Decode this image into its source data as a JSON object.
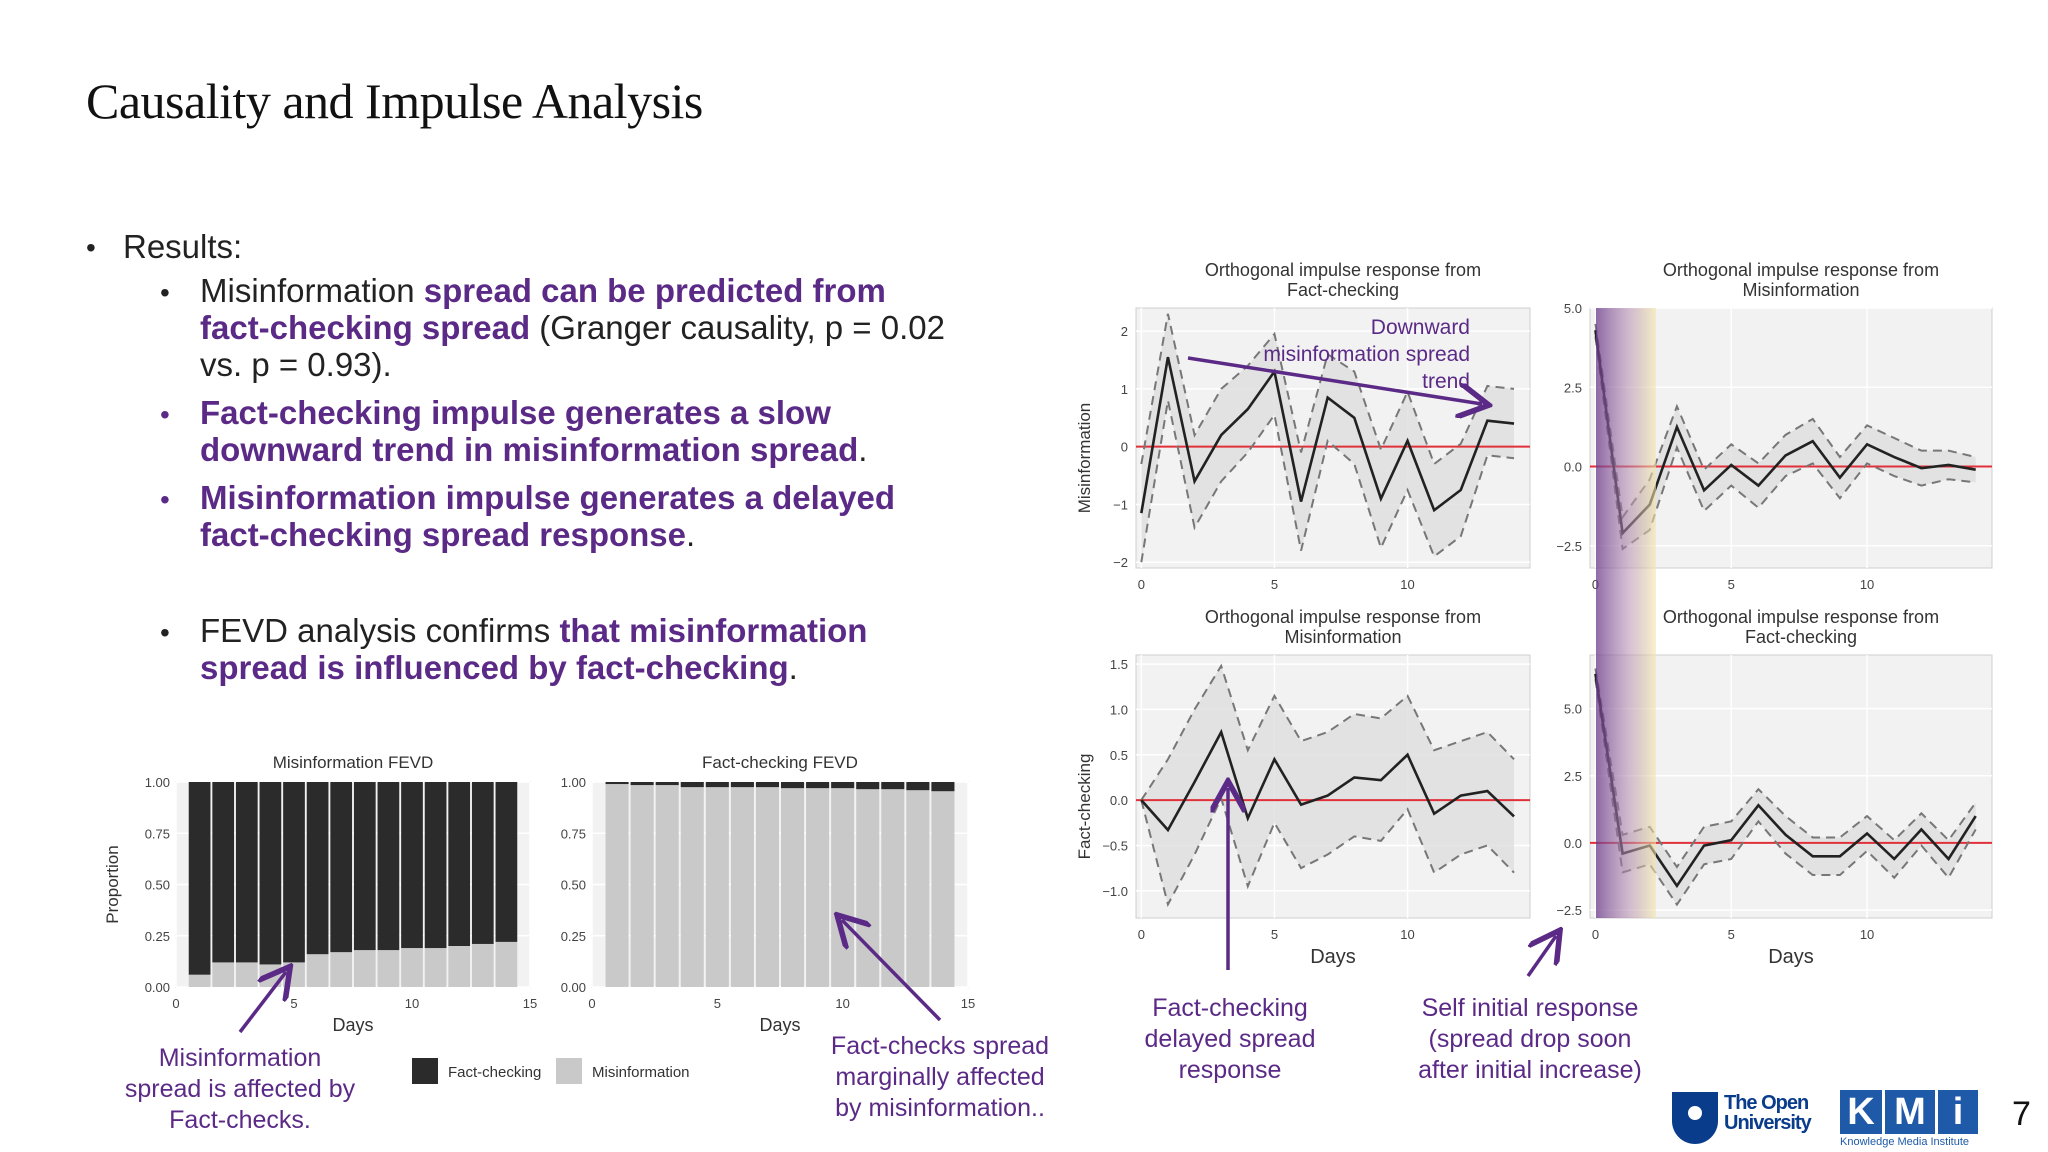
{
  "slide": {
    "title": "Causality and Impulse Analysis",
    "page_number": "7"
  },
  "bullets": {
    "results_label": "Results:",
    "b1": {
      "t1": "Misinformation ",
      "h1": "spread can be predicted from",
      "h2": "fact-checking spread",
      "t2": " (Granger causality, p = 0.02",
      "t3": "vs. p = 0.93)."
    },
    "b2": {
      "h1": "Fact-checking impulse generates a slow",
      "h2": "downward trend in misinformation spread",
      "t": "."
    },
    "b3": {
      "h1": "Misinformation impulse generates a delayed",
      "h2": "fact-checking spread response",
      "t": "."
    },
    "b4": {
      "t1": "FEVD analysis confirms ",
      "h1": "that misinformation",
      "h2": "spread is influenced by fact-checking",
      "t": "."
    }
  },
  "annotations": {
    "misinfo_affected": [
      "Misinformation",
      "spread is affected by",
      "Fact-checks."
    ],
    "factchecks_marginal": [
      "Fact-checks spread",
      "marginally affected",
      "by misinformation.."
    ],
    "delayed_response": [
      "Fact-checking",
      "delayed spread",
      "response"
    ],
    "self_initial": [
      "Self initial response",
      "(spread drop soon",
      "after initial increase)"
    ],
    "downward_trend": [
      "Downward",
      "misinformation spread",
      "trend"
    ]
  },
  "logos": {
    "ou_line1": "The Open",
    "ou_line2": "University",
    "kmi_letters": [
      "K",
      "M",
      "i"
    ],
    "kmi_sub": "Knowledge Media Institute"
  },
  "colors": {
    "purple": "#5b2a86",
    "red": "#e0303a",
    "dark": "#2b2b2b",
    "light": "#c9c9c9",
    "band": "#f2f2f2"
  },
  "chart_data": [
    {
      "type": "bar",
      "title": "Misinformation FEVD",
      "xlabel": "Days",
      "ylabel": "Proportion",
      "xlim": [
        0,
        15
      ],
      "ylim": [
        0,
        1
      ],
      "xticks": [
        "0",
        "5",
        "10",
        "15"
      ],
      "yticks": [
        "0.00",
        "0.25",
        "0.50",
        "0.75",
        "1.00"
      ],
      "x": [
        1,
        2,
        3,
        4,
        5,
        6,
        7,
        8,
        9,
        10,
        11,
        12,
        13,
        14
      ],
      "series": [
        {
          "name": "Misinformation",
          "values": [
            0.06,
            0.12,
            0.12,
            0.11,
            0.12,
            0.16,
            0.17,
            0.18,
            0.18,
            0.19,
            0.19,
            0.2,
            0.21,
            0.22
          ]
        },
        {
          "name": "Fact-checking",
          "values": [
            0.94,
            0.88,
            0.88,
            0.89,
            0.88,
            0.84,
            0.83,
            0.82,
            0.82,
            0.81,
            0.81,
            0.8,
            0.79,
            0.78
          ]
        }
      ],
      "legend": {
        "placement": "bottom",
        "entries": [
          "Fact-checking",
          "Misinformation"
        ]
      }
    },
    {
      "type": "bar",
      "title": "Fact-checking FEVD",
      "xlabel": "Days",
      "xlim": [
        0,
        15
      ],
      "ylim": [
        0,
        1
      ],
      "xticks": [
        "0",
        "5",
        "10",
        "15"
      ],
      "yticks": [
        "0.00",
        "0.25",
        "0.50",
        "0.75",
        "1.00"
      ],
      "x": [
        1,
        2,
        3,
        4,
        5,
        6,
        7,
        8,
        9,
        10,
        11,
        12,
        13,
        14
      ],
      "series": [
        {
          "name": "Misinformation",
          "values": [
            0.99,
            0.985,
            0.985,
            0.975,
            0.975,
            0.975,
            0.975,
            0.97,
            0.97,
            0.97,
            0.965,
            0.965,
            0.96,
            0.955
          ]
        },
        {
          "name": "Fact-checking",
          "values": [
            0.01,
            0.015,
            0.015,
            0.025,
            0.025,
            0.025,
            0.025,
            0.03,
            0.03,
            0.03,
            0.035,
            0.035,
            0.04,
            0.045
          ]
        }
      ]
    },
    {
      "type": "line",
      "title": [
        "Orthogonal impulse response from",
        "Fact-checking"
      ],
      "ylabel": "Misinformation",
      "xlim": [
        -0.2,
        14.6
      ],
      "ylim": [
        -2.1,
        2.4
      ],
      "xticks": [
        0,
        5,
        10
      ],
      "yticks": [
        -2,
        -1,
        0,
        1,
        2
      ],
      "x": [
        0,
        1,
        2,
        3,
        4,
        5,
        6,
        7,
        8,
        9,
        10,
        11,
        12,
        13,
        14
      ],
      "series": [
        {
          "name": "response",
          "values": [
            -1.15,
            1.55,
            -0.6,
            0.2,
            0.65,
            1.3,
            -0.95,
            0.85,
            0.5,
            -0.9,
            0.1,
            -1.1,
            -0.75,
            0.45,
            0.4
          ]
        },
        {
          "name": "upper",
          "values": [
            -0.3,
            2.3,
            0.2,
            1.0,
            1.4,
            1.95,
            -0.1,
            1.6,
            1.3,
            -0.05,
            0.95,
            -0.3,
            0.05,
            1.05,
            1.0
          ]
        },
        {
          "name": "lower",
          "values": [
            -2.0,
            0.8,
            -1.4,
            -0.6,
            -0.1,
            0.55,
            -1.8,
            0.1,
            -0.3,
            -1.75,
            -0.75,
            -1.9,
            -1.55,
            -0.15,
            -0.2
          ]
        }
      ]
    },
    {
      "type": "line",
      "title": [
        "Orthogonal impulse response from",
        "Misinformation"
      ],
      "xlim": [
        -0.2,
        14.6
      ],
      "ylim": [
        -3.2,
        5.0
      ],
      "xticks": [
        0,
        5,
        10
      ],
      "yticks": [
        -2.5,
        0.0,
        2.5,
        5.0
      ],
      "x": [
        0,
        1,
        2,
        3,
        4,
        5,
        6,
        7,
        8,
        9,
        10,
        11,
        12,
        13,
        14
      ],
      "series": [
        {
          "name": "response",
          "values": [
            4.3,
            -2.1,
            -1.2,
            1.25,
            -0.75,
            0.05,
            -0.6,
            0.35,
            0.8,
            -0.35,
            0.7,
            0.3,
            -0.05,
            0.05,
            -0.1
          ]
        },
        {
          "name": "upper",
          "values": [
            4.5,
            -1.6,
            -0.4,
            1.9,
            -0.1,
            0.7,
            0.1,
            1.0,
            1.5,
            0.3,
            1.3,
            0.9,
            0.5,
            0.5,
            0.3
          ]
        },
        {
          "name": "lower",
          "values": [
            4.1,
            -2.6,
            -2.0,
            0.6,
            -1.4,
            -0.6,
            -1.3,
            -0.3,
            0.1,
            -1.0,
            0.1,
            -0.3,
            -0.6,
            -0.4,
            -0.5
          ]
        }
      ]
    },
    {
      "type": "line",
      "title": [
        "Orthogonal impulse response from",
        "Misinformation"
      ],
      "xlabel": "Days",
      "ylabel": "Fact-checking",
      "xlim": [
        -0.2,
        14.6
      ],
      "ylim": [
        -1.3,
        1.6
      ],
      "xticks": [
        0,
        5,
        10
      ],
      "yticks": [
        -1.0,
        -0.5,
        0.0,
        0.5,
        1.0,
        1.5
      ],
      "x": [
        0,
        1,
        2,
        3,
        4,
        5,
        6,
        7,
        8,
        9,
        10,
        11,
        12,
        13,
        14
      ],
      "series": [
        {
          "name": "response",
          "values": [
            0.0,
            -0.33,
            0.2,
            0.75,
            -0.2,
            0.45,
            -0.05,
            0.05,
            0.25,
            0.22,
            0.5,
            -0.15,
            0.05,
            0.1,
            -0.18
          ]
        },
        {
          "name": "upper",
          "values": [
            0.0,
            0.45,
            1.0,
            1.48,
            0.55,
            1.15,
            0.65,
            0.75,
            0.95,
            0.9,
            1.15,
            0.55,
            0.65,
            0.75,
            0.45
          ]
        },
        {
          "name": "lower",
          "values": [
            0.0,
            -1.15,
            -0.6,
            0.02,
            -0.95,
            -0.25,
            -0.75,
            -0.6,
            -0.4,
            -0.45,
            -0.1,
            -0.8,
            -0.6,
            -0.5,
            -0.8
          ]
        }
      ]
    },
    {
      "type": "line",
      "title": [
        "Orthogonal impulse response from",
        "Fact-checking"
      ],
      "xlabel": "Days",
      "xlim": [
        -0.2,
        14.6
      ],
      "ylim": [
        -2.8,
        7.0
      ],
      "xticks": [
        0,
        5,
        10
      ],
      "yticks": [
        -2.5,
        0.0,
        2.5,
        5.0
      ],
      "x": [
        0,
        1,
        2,
        3,
        4,
        5,
        6,
        7,
        8,
        9,
        10,
        11,
        12,
        13,
        14
      ],
      "series": [
        {
          "name": "response",
          "values": [
            6.3,
            -0.4,
            -0.1,
            -1.6,
            -0.1,
            0.1,
            1.4,
            0.3,
            -0.5,
            -0.5,
            0.35,
            -0.6,
            0.5,
            -0.6,
            1.0
          ]
        },
        {
          "name": "upper",
          "values": [
            6.5,
            0.3,
            0.6,
            -0.9,
            0.6,
            0.8,
            2.0,
            1.0,
            0.2,
            0.2,
            1.0,
            0.1,
            1.1,
            0.1,
            1.5
          ]
        },
        {
          "name": "lower",
          "values": [
            6.1,
            -1.1,
            -0.8,
            -2.3,
            -0.8,
            -0.6,
            0.8,
            -0.4,
            -1.2,
            -1.2,
            -0.3,
            -1.3,
            -0.1,
            -1.3,
            0.5
          ]
        }
      ]
    }
  ]
}
